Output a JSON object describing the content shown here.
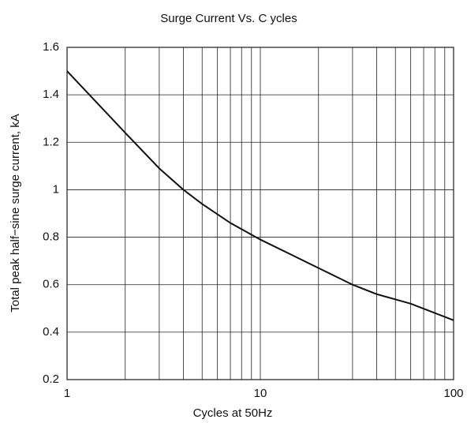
{
  "chart_data": {
    "type": "line",
    "title": "Surge Current Vs. C ycles",
    "x_label": "Cycles at 50Hz",
    "y_label": "Total peak half−sine surge current, kA",
    "x_scale": "log",
    "xlim": [
      1,
      100
    ],
    "xticks": [
      1,
      10,
      100
    ],
    "xminor": [
      2,
      3,
      4,
      5,
      6,
      7,
      8,
      9,
      20,
      30,
      40,
      50,
      60,
      70,
      80,
      90
    ],
    "ylim": [
      0.2,
      1.6
    ],
    "yticks": [
      0.2,
      0.4,
      0.6,
      0.8,
      1,
      1.2,
      1.4,
      1.6
    ],
    "grid": true,
    "series": [
      {
        "color": "#111111",
        "x": [
          1,
          2,
          3,
          4,
          5,
          7,
          10,
          15,
          20,
          30,
          40,
          60,
          100
        ],
        "values": [
          1.5,
          1.24,
          1.09,
          1.0,
          0.94,
          0.86,
          0.79,
          0.72,
          0.67,
          0.6,
          0.56,
          0.52,
          0.45
        ]
      }
    ]
  }
}
